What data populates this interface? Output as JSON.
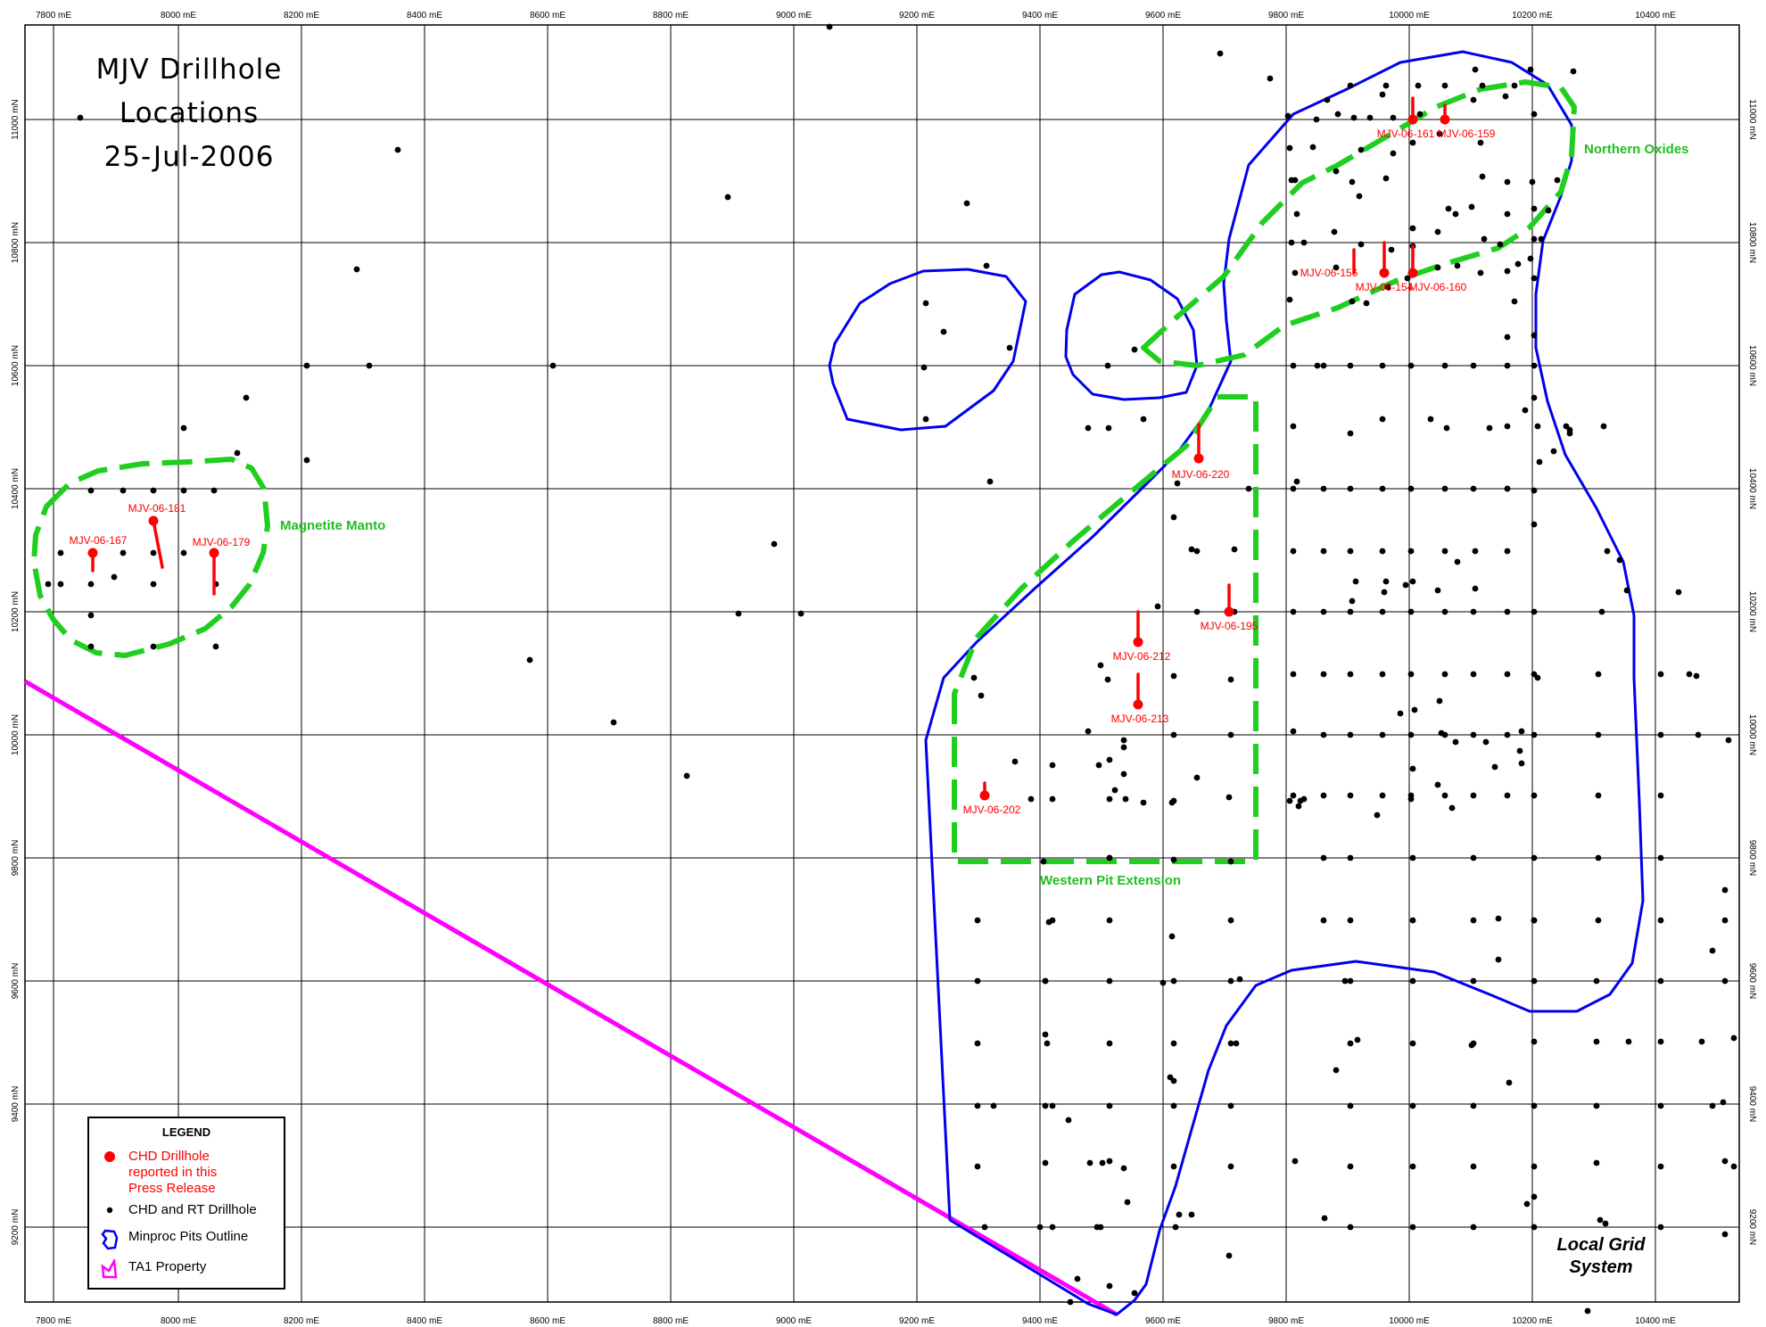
{
  "map": {
    "title_lines": [
      "MJV Drillhole",
      "Locations",
      "25-Jul-2006"
    ],
    "grid_system_lines": [
      "Local Grid",
      "System"
    ],
    "x_axis_labels": [
      "7800 mE",
      "8000 mE",
      "8200 mE",
      "8400 mE",
      "8600 mE",
      "8800 mE",
      "9000 mE",
      "9200 mE",
      "9400 mE",
      "9600 mE",
      "9800 mE",
      "10000 mE",
      "10200 mE",
      "10400 mE"
    ],
    "y_axis_labels": [
      "11000 mN",
      "10800 mN",
      "10600 mN",
      "10400 mN",
      "10200 mN",
      "10000 mN",
      "9800 mN",
      "9600 mN",
      "9400 mN",
      "9200 mN"
    ],
    "zones": [
      "Magnetite Manto",
      "Northern Oxides",
      "Western Pit Extension"
    ],
    "drillholes_reported": [
      "MJV-06-161",
      "MJV-06-159",
      "MJV-06-156",
      "MJV-06-154",
      "MJV-06-160",
      "MJV-06-220",
      "MJV-06-195",
      "MJV-06-212",
      "MJV-06-213",
      "MJV-06-202",
      "MJV-06-181",
      "MJV-06-167",
      "MJV-06-179"
    ],
    "colors": {
      "reported_hole": "#ff0000",
      "other_hole": "#000000",
      "pit_outline": "#0000ee",
      "zone_outline": "#1fcf1f",
      "zone_label": "#1fbf1f",
      "property_line": "#ff00ff",
      "grid": "#000000"
    }
  },
  "legend": {
    "title": "LEGEND",
    "items": [
      {
        "symbol": "red-dot-icon",
        "label_lines": [
          "CHD Drillhole",
          "reported in this",
          "Press Release"
        ]
      },
      {
        "symbol": "black-dot-icon",
        "label_lines": [
          "CHD and RT Drillhole"
        ]
      },
      {
        "symbol": "blue-outline-icon",
        "label_lines": [
          "Minproc Pits Outline"
        ]
      },
      {
        "symbol": "magenta-outline-icon",
        "label_lines": [
          "TA1 Property"
        ]
      }
    ]
  }
}
